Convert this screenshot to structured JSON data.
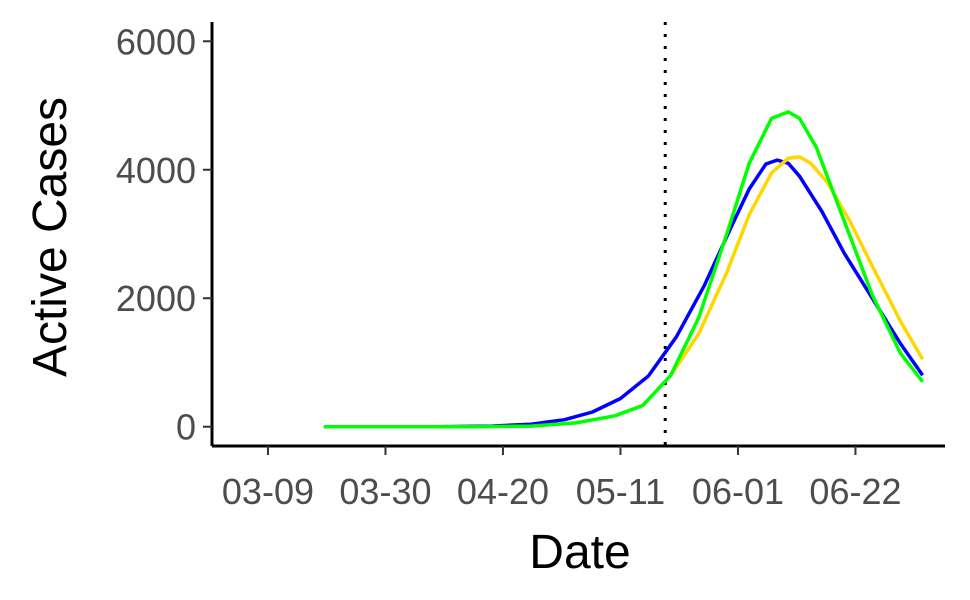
{
  "chart_data": {
    "type": "line",
    "xlabel": "Date",
    "ylabel": "Active Cases",
    "x_ticks": [
      "03-09",
      "03-30",
      "04-20",
      "05-11",
      "06-01",
      "06-22"
    ],
    "y_ticks": [
      0,
      2000,
      4000,
      6000
    ],
    "xlim": [
      "2020-02-28",
      "2020-07-08"
    ],
    "ylim": [
      -300,
      6300
    ],
    "vertical_line": {
      "x": "2020-05-19",
      "style": "dotted",
      "color": "#000000"
    },
    "grid": false,
    "legend": "none",
    "series": [
      {
        "color": "#0000ff",
        "x": [
          "2020-03-19",
          "2020-03-29",
          "2020-04-08",
          "2020-04-18",
          "2020-04-25",
          "2020-05-01",
          "2020-05-06",
          "2020-05-11",
          "2020-05-16",
          "2020-05-21",
          "2020-05-26",
          "2020-05-31",
          "2020-06-03",
          "2020-06-06",
          "2020-06-08",
          "2020-06-10",
          "2020-06-12",
          "2020-06-16",
          "2020-06-20",
          "2020-06-25",
          "2020-06-30",
          "2020-07-04"
        ],
        "values": [
          0,
          0,
          0,
          10,
          40,
          110,
          230,
          440,
          790,
          1400,
          2200,
          3150,
          3700,
          4090,
          4150,
          4100,
          3900,
          3350,
          2700,
          2000,
          1300,
          800
        ]
      },
      {
        "color": "#ffd700",
        "x": [
          "2020-05-20",
          "2020-05-25",
          "2020-05-30",
          "2020-06-03",
          "2020-06-07",
          "2020-06-10",
          "2020-06-12",
          "2020-06-14",
          "2020-06-17",
          "2020-06-21",
          "2020-06-25",
          "2020-06-30",
          "2020-07-04"
        ],
        "values": [
          800,
          1450,
          2400,
          3300,
          3950,
          4180,
          4200,
          4100,
          3800,
          3200,
          2500,
          1650,
          1050
        ]
      },
      {
        "color": "#00ff00",
        "x": [
          "2020-03-19",
          "2020-04-01",
          "2020-04-15",
          "2020-04-25",
          "2020-05-03",
          "2020-05-10",
          "2020-05-15",
          "2020-05-20",
          "2020-05-25",
          "2020-05-30",
          "2020-06-03",
          "2020-06-07",
          "2020-06-10",
          "2020-06-12",
          "2020-06-15",
          "2020-06-20",
          "2020-06-25",
          "2020-06-30",
          "2020-07-04"
        ],
        "values": [
          0,
          0,
          0,
          10,
          60,
          170,
          330,
          800,
          1700,
          3000,
          4100,
          4800,
          4900,
          4800,
          4350,
          3200,
          2050,
          1150,
          700
        ]
      }
    ]
  }
}
